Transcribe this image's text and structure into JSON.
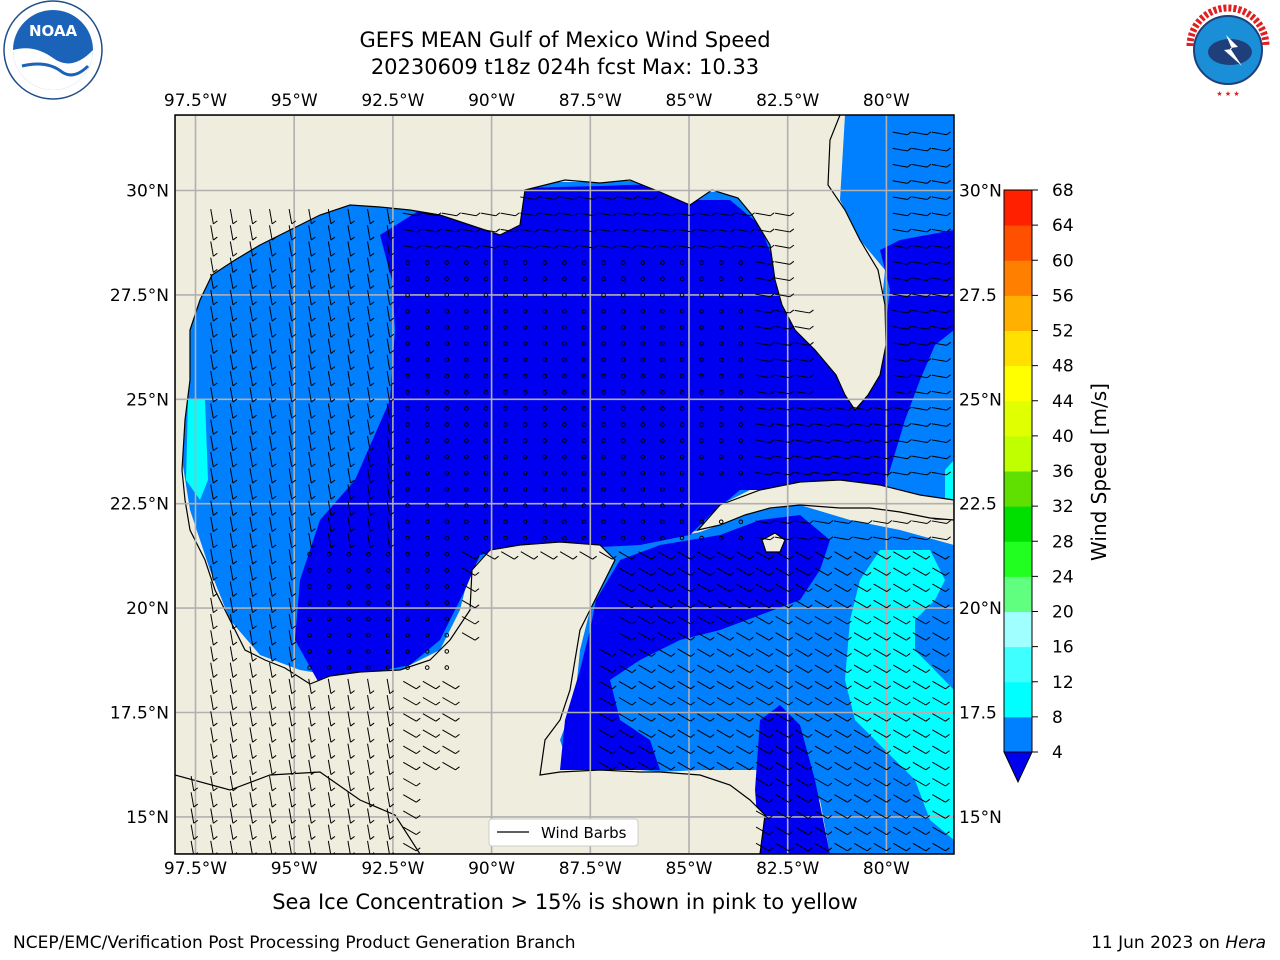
{
  "title": {
    "line1": "GEFS MEAN Gulf of Mexico Wind Speed",
    "line2": "20230609 t18z 024h fcst   Max: 10.33"
  },
  "logos": {
    "left": "noora-logo",
    "left_text": "NOAA",
    "right": "nws-logo",
    "right_text": "NATIONAL WEATHER SERVICE"
  },
  "map": {
    "lon_labels": [
      "97.5°W",
      "95°W",
      "92.5°W",
      "90°W",
      "87.5°W",
      "85°W",
      "82.5°W",
      "80°W"
    ],
    "lat_labels": [
      "30°N",
      "27.5°N",
      "25°N",
      "22.5°N",
      "20°N",
      "17.5°N",
      "15°N"
    ],
    "lat_labels_right": [
      "30°N",
      "27.5",
      "25°N",
      "22.5",
      "20°N",
      "17.5",
      "15°N"
    ],
    "legend_label": "Wind Barbs",
    "colors": {
      "land": "#efedde",
      "ws_4_8": "#0000f0",
      "ws_8_12": "#0080ff",
      "ws_12_16": "#00ffff"
    }
  },
  "colorbar": {
    "label": "Wind Speed [m/s]",
    "ticks": [
      "4",
      "8",
      "12",
      "16",
      "20",
      "24",
      "28",
      "32",
      "36",
      "40",
      "44",
      "48",
      "52",
      "56",
      "60",
      "64",
      "68"
    ],
    "colors": [
      "#0080ff",
      "#00ffff",
      "#40ffff",
      "#a0ffff",
      "#60ff80",
      "#20ff20",
      "#00e000",
      "#60e000",
      "#c0ff00",
      "#e0ff00",
      "#ffff00",
      "#ffe000",
      "#ffb000",
      "#ff8000",
      "#ff5000",
      "#ff2000"
    ],
    "under_color": "#0000f0"
  },
  "footer": {
    "note": "Sea Ice Concentration > 15% is shown in pink to yellow",
    "credit_left": "NCEP/EMC/Verification Post Processing Product Generation Branch",
    "date": "11 Jun 2023 on ",
    "machine": "Hera"
  }
}
